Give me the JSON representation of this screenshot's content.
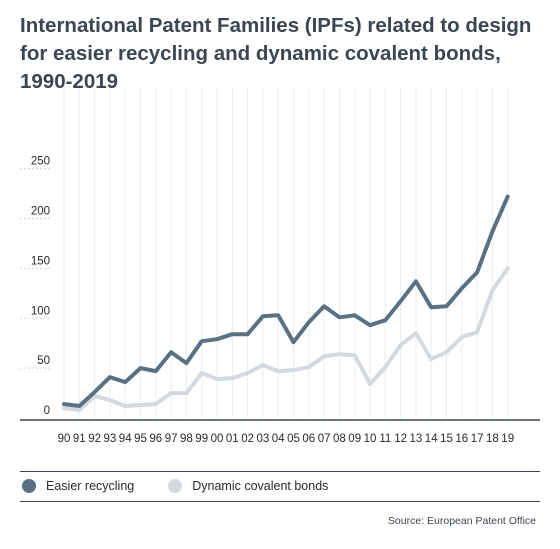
{
  "title": "International Patent Families (IPFs) related to design for easier recycling and dynamic covalent bonds, 1990-2019",
  "source": "Source: European Patent Office",
  "colors": {
    "easier_recycling": "#5a7184",
    "dynamic_covalent_bonds": "#d3d9de",
    "axis": "#3c4652",
    "text": "#2b2b2b"
  },
  "legend": [
    {
      "label": "Easier recycling",
      "color": "#5a7184"
    },
    {
      "label": "Dynamic covalent bonds",
      "color": "#d3d9de"
    }
  ],
  "chart_data": {
    "type": "line",
    "title": "International Patent Families (IPFs) related to design for easier recycling and dynamic covalent bonds, 1990-2019",
    "xlabel": "",
    "ylabel": "",
    "ylim": [
      0,
      250
    ],
    "yticks": [
      0,
      50,
      100,
      150,
      200,
      250
    ],
    "grid": "vertical",
    "legend_position": "bottom",
    "categories": [
      "90",
      "91",
      "92",
      "93",
      "94",
      "95",
      "96",
      "97",
      "98",
      "99",
      "00",
      "01",
      "02",
      "03",
      "04",
      "05",
      "06",
      "07",
      "08",
      "09",
      "10",
      "11",
      "12",
      "13",
      "14",
      "15",
      "16",
      "17",
      "18",
      "19"
    ],
    "series": [
      {
        "name": "Easier recycling",
        "color": "#5a7184",
        "values": [
          14,
          12,
          26,
          41,
          36,
          50,
          47,
          66,
          55,
          77,
          79,
          84,
          84,
          102,
          103,
          76,
          96,
          112,
          101,
          103,
          93,
          98,
          117,
          137,
          111,
          112,
          130,
          146,
          187,
          222
        ]
      },
      {
        "name": "Dynamic covalent bonds",
        "color": "#d3d9de",
        "values": [
          10,
          8,
          22,
          18,
          12,
          13,
          14,
          25,
          25,
          45,
          39,
          40,
          45,
          53,
          47,
          48,
          51,
          62,
          64,
          63,
          34,
          51,
          73,
          85,
          59,
          66,
          81,
          86,
          128,
          150
        ]
      }
    ]
  }
}
